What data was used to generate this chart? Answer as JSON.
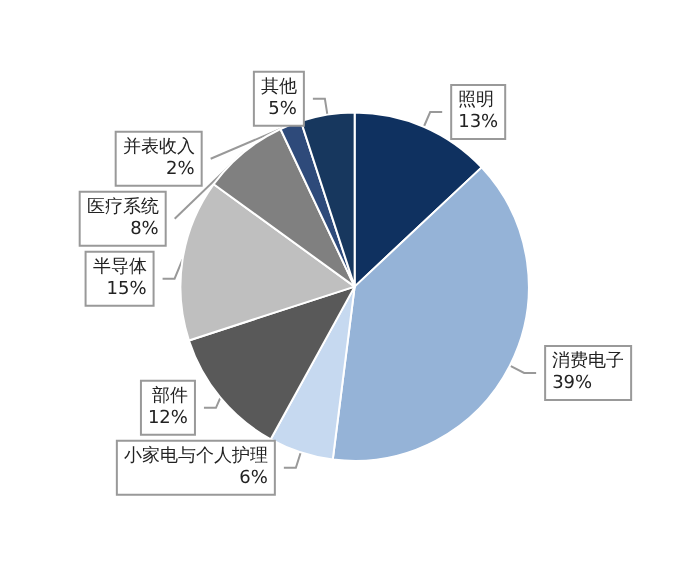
{
  "chart_data": {
    "type": "pie",
    "categories": [
      "照明",
      "消费电子",
      "小家电与个人护理",
      "部件",
      "半导体",
      "医疗系统",
      "并表收入",
      "其他"
    ],
    "values": [
      13,
      39,
      6,
      12,
      15,
      8,
      2,
      5
    ],
    "value_labels": [
      "13%",
      "39%",
      "6%",
      "12%",
      "15%",
      "8%",
      "2%",
      "5%"
    ],
    "colors": [
      "#0f3160",
      "#95b3d7",
      "#c6d9f0",
      "#595959",
      "#bfbfbf",
      "#808080",
      "#2e4a7a",
      "#17375e"
    ]
  }
}
